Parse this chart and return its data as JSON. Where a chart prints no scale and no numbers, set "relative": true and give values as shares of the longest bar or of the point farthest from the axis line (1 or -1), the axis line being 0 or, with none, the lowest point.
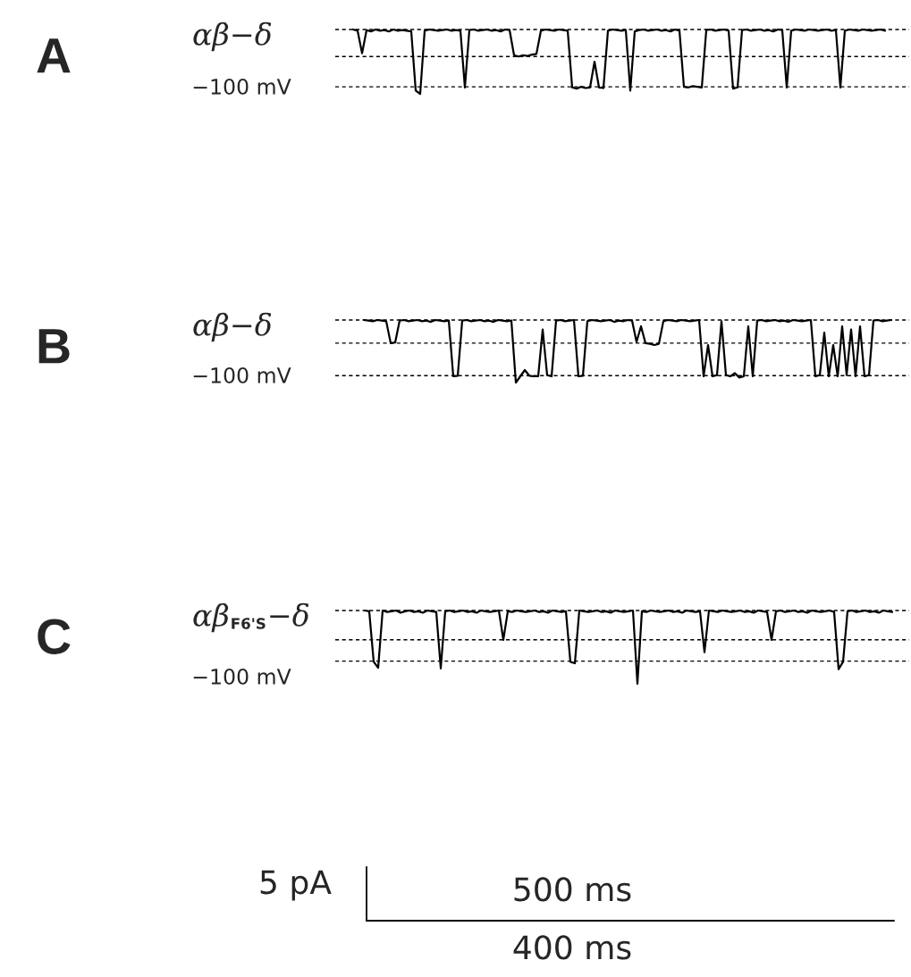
{
  "chart_data": [
    {
      "type": "line",
      "title": "A",
      "subtitle": "αβ−δ",
      "ylabel": "−100 mV",
      "relative": true,
      "marker": "none",
      "line_style": "solid",
      "categories": [
        null,
        null,
        null,
        null,
        null,
        null,
        null,
        null,
        null,
        null,
        null,
        null,
        null,
        null,
        null,
        null,
        null,
        null,
        null,
        null,
        null,
        null,
        null,
        null,
        null,
        null,
        null,
        null,
        null,
        null,
        null,
        null,
        null,
        null,
        null,
        null,
        null,
        null,
        null,
        null,
        null,
        null,
        null,
        null,
        null,
        null,
        null,
        null,
        null,
        null,
        null,
        null,
        null,
        null,
        null,
        null,
        null,
        null,
        null,
        null,
        null,
        null,
        null,
        null,
        null,
        null,
        null,
        null,
        null,
        null,
        null,
        null,
        null,
        null,
        null,
        null,
        null,
        null,
        null,
        null,
        null,
        null,
        null,
        null,
        null,
        null,
        null,
        null,
        null,
        null,
        null,
        null,
        null,
        null,
        null,
        null,
        null,
        null,
        null,
        null,
        null,
        null,
        null,
        null,
        null,
        null,
        null,
        null,
        null,
        null,
        null,
        null,
        null,
        null,
        null,
        null,
        null,
        null,
        null,
        null
      ],
      "series": [
        {
          "color": "#000000",
          "values": [
            1,
            0.98,
            0.63,
            0.99,
            0.97,
            1,
            0.98,
            0.99,
            0.97,
            1,
            0.98,
            0.99,
            0.98,
            0.97,
            0.05,
            0,
            0.98,
            1,
            0.99,
            0.98,
            0.99,
            1,
            0.98,
            0.99,
            0.98,
            0.1,
            0.99,
            1,
            0.98,
            0.99,
            1,
            0.98,
            0.99,
            0.97,
            1,
            0.99,
            0.6,
            0.58,
            0.6,
            0.59,
            0.61,
            0.62,
            0.98,
            1,
            0.99,
            0.98,
            1,
            0.99,
            0.98,
            0.1,
            0.08,
            0.11,
            0.09,
            0.1,
            0.5,
            0.1,
            0.09,
            0.98,
            1,
            0.99,
            0.98,
            0.99,
            0.05,
            0.97,
            0.99,
            1,
            0.98,
            0.99,
            1,
            0.98,
            0.99,
            0.97,
            1,
            0.98,
            0.11,
            0.1,
            0.12,
            0.11,
            0.1,
            0.99,
            1,
            0.98,
            0.99,
            1,
            0.98,
            0.08,
            0.1,
            0.99,
            1,
            0.98,
            0.99,
            1,
            0.98,
            0.99,
            0.97,
            1,
            0.99,
            0.1,
            0.98,
            1,
            0.99,
            0.98,
            1,
            0.99,
            0.98,
            0.99,
            1,
            0.98,
            0.99,
            0.1,
            0.98,
            1,
            0.99,
            0.98,
            1,
            0.99,
            0.98,
            0.99,
            1,
            0.98
          ]
        }
      ],
      "ref_lines": [
        {
          "axis": "y",
          "value": 1,
          "color": "#000000",
          "line_style": "dashed"
        },
        {
          "axis": "y",
          "value": 0.58,
          "color": "#000000",
          "line_style": "dashed"
        },
        {
          "axis": "y",
          "value": 0.11,
          "color": "#000000",
          "line_style": "dashed"
        }
      ]
    },
    {
      "type": "line",
      "title": "B",
      "subtitle": "αβ−δ",
      "ylabel": "−100 mV",
      "relative": true,
      "marker": "none",
      "line_style": "solid",
      "categories": [
        null,
        null,
        null,
        null,
        null,
        null,
        null,
        null,
        null,
        null,
        null,
        null,
        null,
        null,
        null,
        null,
        null,
        null,
        null,
        null,
        null,
        null,
        null,
        null,
        null,
        null,
        null,
        null,
        null,
        null,
        null,
        null,
        null,
        null,
        null,
        null,
        null,
        null,
        null,
        null,
        null,
        null,
        null,
        null,
        null,
        null,
        null,
        null,
        null,
        null,
        null,
        null,
        null,
        null,
        null,
        null,
        null,
        null,
        null,
        null,
        null,
        null,
        null,
        null,
        null,
        null,
        null,
        null,
        null,
        null,
        null,
        null,
        null,
        null,
        null,
        null,
        null,
        null,
        null,
        null,
        null,
        null,
        null,
        null,
        null,
        null,
        null,
        null,
        null,
        null,
        null,
        null,
        null,
        null,
        null,
        null,
        null,
        null,
        null,
        null,
        null,
        null,
        null,
        null,
        null,
        null,
        null,
        null,
        null,
        null,
        null,
        null,
        null,
        null,
        null,
        null,
        null,
        null,
        null
      ],
      "series": [
        {
          "color": "#000000",
          "values": [
            1,
            0.99,
            0.98,
            1,
            0.99,
            0.98,
            0.63,
            0.64,
            0.99,
            1,
            0.98,
            0.99,
            1,
            0.98,
            0.99,
            0.97,
            1,
            0.99,
            0.98,
            0.99,
            0.1,
            0.11,
            0.99,
            1,
            0.98,
            0.99,
            1,
            0.98,
            0.99,
            0.97,
            1,
            0.99,
            0.98,
            0.99,
            0,
            0.1,
            0.2,
            0.11,
            0.1,
            0.1,
            0.85,
            0.12,
            0.1,
            0.99,
            1,
            0.98,
            0.99,
            1,
            0.1,
            0.11,
            0.98,
            1,
            0.99,
            0.98,
            0.99,
            1,
            0.97,
            0.99,
            0.98,
            1,
            0.99,
            0.65,
            0.9,
            0.63,
            0.62,
            0.6,
            0.62,
            0.98,
            1,
            0.99,
            0.98,
            1,
            0.99,
            0.98,
            0.99,
            1,
            0.1,
            0.6,
            0.1,
            0.12,
            0.98,
            0.12,
            0.1,
            0.15,
            0.08,
            0.1,
            0.9,
            0.1,
            0.99,
            1,
            0.98,
            0.99,
            1,
            0.98,
            0.99,
            0.97,
            1,
            0.99,
            0.98,
            0.99,
            1,
            0.1,
            0.12,
            0.8,
            0.1,
            0.6,
            0.1,
            0.9,
            0.12,
            0.85,
            0.1,
            0.9,
            0.1,
            0.12,
            0.99,
            1,
            0.98,
            0.99,
            1
          ]
        }
      ],
      "ref_lines": [
        {
          "axis": "y",
          "value": 1,
          "color": "#000000",
          "line_style": "dashed"
        },
        {
          "axis": "y",
          "value": 0.63,
          "color": "#000000",
          "line_style": "dashed"
        },
        {
          "axis": "y",
          "value": 0.11,
          "color": "#000000",
          "line_style": "dashed"
        }
      ]
    },
    {
      "type": "line",
      "title": "C",
      "subtitle": "αβ$_{F6'S}$−δ",
      "ylabel": "−100 mV",
      "relative": true,
      "marker": "none",
      "line_style": "solid",
      "categories": [
        null,
        null,
        null,
        null,
        null,
        null,
        null,
        null,
        null,
        null,
        null,
        null,
        null,
        null,
        null,
        null,
        null,
        null,
        null,
        null,
        null,
        null,
        null,
        null,
        null,
        null,
        null,
        null,
        null,
        null,
        null,
        null,
        null,
        null,
        null,
        null,
        null,
        null,
        null,
        null,
        null,
        null,
        null,
        null,
        null,
        null,
        null,
        null,
        null,
        null,
        null,
        null,
        null,
        null,
        null,
        null,
        null,
        null,
        null,
        null,
        null,
        null,
        null,
        null,
        null,
        null,
        null,
        null,
        null,
        null,
        null,
        null,
        null,
        null,
        null,
        null,
        null,
        null,
        null,
        null,
        null,
        null,
        null,
        null,
        null,
        null,
        null,
        null,
        null,
        null,
        null,
        null,
        null,
        null,
        null,
        null,
        null,
        null,
        null,
        null,
        null,
        null,
        null,
        null,
        null,
        null,
        null,
        null,
        null,
        null,
        null,
        null,
        null,
        null,
        null,
        null,
        null,
        null,
        null
      ],
      "series": [
        {
          "color": "#000000",
          "values": [
            1,
            0.99,
            0.3,
            0.22,
            1,
            0.98,
            0.99,
            1,
            0.97,
            0.99,
            1,
            0.98,
            0.99,
            0.97,
            1,
            0.99,
            0.98,
            0.21,
            0.99,
            1,
            0.98,
            0.99,
            1,
            0.98,
            0.99,
            0.97,
            1,
            0.99,
            0.98,
            0.99,
            1,
            0.6,
            0.99,
            0.98,
            1,
            0.99,
            0.98,
            0.99,
            1,
            0.98,
            0.99,
            0.97,
            1,
            0.99,
            0.98,
            0.99,
            0.3,
            0.28,
            1,
            0.99,
            0.98,
            0.99,
            1,
            0.98,
            0.99,
            0.97,
            1,
            0.99,
            0.98,
            0.99,
            1,
            0,
            0.99,
            0.98,
            1,
            0.99,
            0.98,
            0.99,
            1,
            0.98,
            0.99,
            0.97,
            1,
            0.99,
            0.98,
            0.99,
            0.43,
            1,
            0.99,
            0.98,
            1,
            0.99,
            0.98,
            0.99,
            1,
            0.98,
            0.99,
            0.97,
            1,
            0.99,
            0.98,
            0.6,
            0.99,
            1,
            0.98,
            0.99,
            1,
            0.98,
            0.99,
            0.97,
            1,
            0.99,
            0.98,
            0.99,
            1,
            0.98,
            0.2,
            0.3,
            0.99,
            1,
            0.98,
            0.99,
            1,
            0.98,
            0.99,
            0.97,
            1,
            0.99,
            0.98
          ]
        }
      ],
      "ref_lines": [
        {
          "axis": "y",
          "value": 1,
          "color": "#000000",
          "line_style": "dashed"
        },
        {
          "axis": "y",
          "value": 0.6,
          "color": "#000000",
          "line_style": "dashed"
        },
        {
          "axis": "y",
          "value": 0.31,
          "color": "#000000",
          "line_style": "dashed"
        }
      ],
      "annotations": [
        "5 pA",
        "500 ms",
        "400 ms"
      ]
    }
  ]
}
